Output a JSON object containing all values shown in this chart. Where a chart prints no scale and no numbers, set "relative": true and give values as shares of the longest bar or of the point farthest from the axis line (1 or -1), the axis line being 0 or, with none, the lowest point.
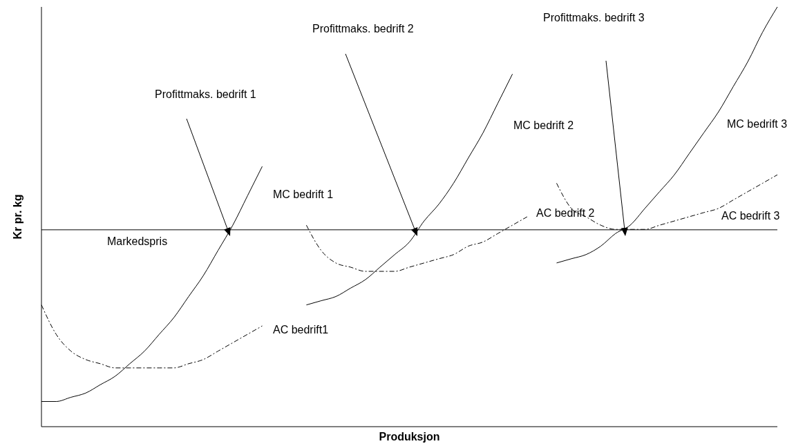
{
  "chart_data": {
    "type": "line",
    "relative": true,
    "xlabel": "Produksjon",
    "ylabel": "Kr pr. kg",
    "categories": [
      null,
      null,
      null,
      null,
      null,
      null,
      null,
      null,
      null,
      null,
      null,
      null,
      null,
      null,
      null,
      null,
      null,
      null,
      null,
      null,
      null,
      null,
      null,
      null,
      null,
      null,
      null,
      null,
      null,
      null,
      null,
      null,
      null,
      null,
      null,
      null,
      null,
      null,
      null,
      null,
      null,
      null,
      null,
      null,
      null,
      null,
      null,
      null,
      null,
      null,
      null
    ],
    "series": [
      {
        "name": "MC bedrift 1",
        "color": "#000000",
        "line_style": "solid",
        "values": [
          0.06,
          0.06,
          0.07,
          0.08,
          0.1,
          0.12,
          0.15,
          0.18,
          0.22,
          0.26,
          0.31,
          0.36,
          0.42,
          0.48,
          0.55,
          0.62,
          null,
          null,
          null,
          null,
          null,
          null,
          null,
          null,
          null,
          null,
          null,
          null,
          null,
          null,
          null,
          null,
          null,
          null,
          null,
          null,
          null,
          null,
          null,
          null,
          null,
          null,
          null,
          null,
          null,
          null,
          null,
          null,
          null,
          null,
          null
        ]
      },
      {
        "name": "AC bedrift1",
        "color": "#000000",
        "line_style": "dashed",
        "values": [
          0.29,
          0.22,
          0.18,
          0.16,
          0.15,
          0.14,
          0.14,
          0.14,
          0.14,
          0.14,
          0.15,
          0.16,
          0.18,
          0.2,
          0.22,
          0.24,
          null,
          null,
          null,
          null,
          null,
          null,
          null,
          null,
          null,
          null,
          null,
          null,
          null,
          null,
          null,
          null,
          null,
          null,
          null,
          null,
          null,
          null,
          null,
          null,
          null,
          null,
          null,
          null,
          null,
          null,
          null,
          null,
          null,
          null,
          null
        ]
      },
      {
        "name": "MC bedrift 2",
        "color": "#000000",
        "line_style": "solid",
        "values": [
          null,
          null,
          null,
          null,
          null,
          null,
          null,
          null,
          null,
          null,
          null,
          null,
          null,
          null,
          null,
          null,
          null,
          null,
          0.29,
          0.3,
          0.31,
          0.33,
          0.35,
          0.38,
          0.41,
          0.44,
          0.49,
          0.53,
          0.58,
          0.64,
          0.7,
          0.77,
          0.84,
          null,
          null,
          null,
          null,
          null,
          null,
          null,
          null,
          null,
          null,
          null,
          null,
          null,
          null,
          null,
          null,
          null,
          null
        ]
      },
      {
        "name": "AC bedrift 2",
        "color": "#000000",
        "line_style": "dashed",
        "values": [
          null,
          null,
          null,
          null,
          null,
          null,
          null,
          null,
          null,
          null,
          null,
          null,
          null,
          null,
          null,
          null,
          null,
          null,
          0.48,
          0.42,
          0.39,
          0.38,
          0.37,
          0.37,
          0.37,
          0.38,
          0.39,
          0.4,
          0.41,
          0.43,
          0.44,
          0.46,
          0.48,
          0.5,
          null,
          null,
          null,
          null,
          null,
          null,
          null,
          null,
          null,
          null,
          null,
          null,
          null,
          null,
          null,
          null,
          null
        ]
      },
      {
        "name": "MC bedrift 3",
        "color": "#000000",
        "line_style": "solid",
        "values": [
          null,
          null,
          null,
          null,
          null,
          null,
          null,
          null,
          null,
          null,
          null,
          null,
          null,
          null,
          null,
          null,
          null,
          null,
          null,
          null,
          null,
          null,
          null,
          null,
          null,
          null,
          null,
          null,
          null,
          null,
          null,
          null,
          null,
          null,
          null,
          0.39,
          0.4,
          0.41,
          0.43,
          0.46,
          0.48,
          0.52,
          0.56,
          0.6,
          0.65,
          0.7,
          0.75,
          0.81,
          0.87,
          0.94,
          1.0
        ]
      },
      {
        "name": "AC bedrift 3",
        "color": "#000000",
        "line_style": "dashed",
        "values": [
          null,
          null,
          null,
          null,
          null,
          null,
          null,
          null,
          null,
          null,
          null,
          null,
          null,
          null,
          null,
          null,
          null,
          null,
          null,
          null,
          null,
          null,
          null,
          null,
          null,
          null,
          null,
          null,
          null,
          null,
          null,
          null,
          null,
          null,
          null,
          0.58,
          0.52,
          0.5,
          0.48,
          0.47,
          0.47,
          0.47,
          0.48,
          0.49,
          0.5,
          0.51,
          0.52,
          0.54,
          0.56,
          0.58,
          0.6
        ]
      }
    ],
    "ref_lines": [
      {
        "axis": "y",
        "value": 0.469,
        "label": "Markedspris",
        "color": "#000000"
      }
    ],
    "annotations": [
      "Profittmaks. bedrift 1",
      "Profittmaks. bedrift 2",
      "Profittmaks. bedrift 3"
    ]
  }
}
